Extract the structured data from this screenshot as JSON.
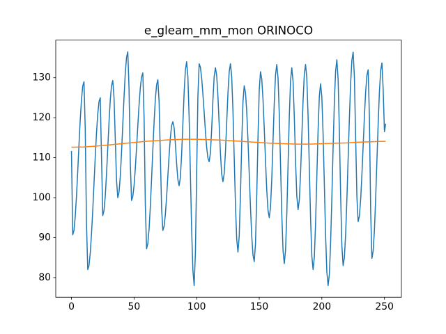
{
  "chart_data": {
    "type": "line",
    "title": "e_gleam_mm_mon ORINOCO",
    "xlim": [
      -12.55,
      263.55
    ],
    "ylim": [
      75.08,
      139.42
    ],
    "xticks": [
      0,
      50,
      100,
      150,
      200,
      250
    ],
    "yticks": [
      80,
      90,
      100,
      110,
      120,
      130
    ],
    "series": [
      {
        "color": "#1f77b4",
        "x": [
          0,
          1,
          2,
          3,
          4,
          5,
          6,
          7,
          8,
          9,
          10,
          11,
          12,
          13,
          14,
          15,
          16,
          17,
          18,
          19,
          20,
          21,
          22,
          23,
          24,
          25,
          26,
          27,
          28,
          29,
          30,
          31,
          32,
          33,
          34,
          35,
          36,
          37,
          38,
          39,
          40,
          41,
          42,
          43,
          44,
          45,
          46,
          47,
          48,
          49,
          50,
          51,
          52,
          53,
          54,
          55,
          56,
          57,
          58,
          59,
          60,
          61,
          62,
          63,
          64,
          65,
          66,
          67,
          68,
          69,
          70,
          71,
          72,
          73,
          74,
          75,
          76,
          77,
          78,
          79,
          80,
          81,
          82,
          83,
          84,
          85,
          86,
          87,
          88,
          89,
          90,
          91,
          92,
          93,
          94,
          95,
          96,
          97,
          98,
          99,
          100,
          101,
          102,
          103,
          104,
          105,
          106,
          107,
          108,
          109,
          110,
          111,
          112,
          113,
          114,
          115,
          116,
          117,
          118,
          119,
          120,
          121,
          122,
          123,
          124,
          125,
          126,
          127,
          128,
          129,
          130,
          131,
          132,
          133,
          134,
          135,
          136,
          137,
          138,
          139,
          140,
          141,
          142,
          143,
          144,
          145,
          146,
          147,
          148,
          149,
          150,
          151,
          152,
          153,
          154,
          155,
          156,
          157,
          158,
          159,
          160,
          161,
          162,
          163,
          164,
          165,
          166,
          167,
          168,
          169,
          170,
          171,
          172,
          173,
          174,
          175,
          176,
          177,
          178,
          179,
          180,
          181,
          182,
          183,
          184,
          185,
          186,
          187,
          188,
          189,
          190,
          191,
          192,
          193,
          194,
          195,
          196,
          197,
          198,
          199,
          200,
          201,
          202,
          203,
          204,
          205,
          206,
          207,
          208,
          209,
          210,
          211,
          212,
          213,
          214,
          215,
          216,
          217,
          218,
          219,
          220,
          221,
          222,
          223,
          224,
          225,
          226,
          227,
          228,
          229,
          230,
          231,
          232,
          233,
          234,
          235,
          236,
          237,
          238,
          239,
          240,
          241,
          242,
          243,
          244,
          245,
          246,
          247,
          248,
          249,
          250,
          251
        ],
        "values": [
          111.7,
          90.7,
          91.8,
          95.2,
          100.3,
          106.5,
          113.2,
          119.4,
          124.5,
          127.9,
          129,
          117.3,
          93.8,
          82,
          83.0,
          86.1,
          90.9,
          96.8,
          103.5,
          110.2,
          116.1,
          120.9,
          124.0,
          125,
          110.3,
          95.5,
          96.8,
          100.4,
          105.9,
          112.4,
          118.9,
          124.4,
          128.0,
          129.3,
          125.0,
          114.7,
          104.3,
          100,
          101.4,
          105.3,
          111.3,
          118.3,
          125.2,
          131.2,
          135.1,
          136.5,
          127.2,
          108.6,
          99.3,
          100.3,
          103.0,
          107.3,
          112.5,
          118.0,
          123.2,
          127.5,
          130.2,
          131.2,
          120.2,
          98.2,
          87.2,
          88.5,
          92.1,
          97.8,
          104.7,
          112.0,
          118.9,
          124.6,
          128.2,
          129.5,
          124.0,
          110.7,
          97.3,
          91.8,
          92.8,
          95.8,
          100.2,
          105.4,
          110.6,
          115.0,
          118.0,
          119,
          117.5,
          113.5,
          108.5,
          104.5,
          103,
          105.1,
          110.8,
          118.5,
          126.3,
          131.9,
          134,
          130.2,
          120,
          106,
          92,
          81.8,
          78,
          86.1,
          105.8,
          125.4,
          133.5,
          132.6,
          129.9,
          125.9,
          121.3,
          116.6,
          112.6,
          109.9,
          109,
          111.2,
          117.1,
          124.4,
          130.3,
          132.5,
          130.6,
          125.4,
          118.3,
          111.1,
          105.9,
          104,
          106.0,
          111.4,
          118.8,
          126.1,
          131.5,
          133.5,
          130.3,
          121.7,
          110.0,
          98.2,
          89.6,
          86.4,
          90.4,
          100.8,
          113.6,
          124.0,
          128,
          126.3,
          121.6,
          114.4,
          106,
          97.6,
          90.4,
          85.7,
          84,
          88.5,
          100.4,
          115.1,
          127.0,
          131.5,
          129.7,
          124.6,
          117.3,
          109.2,
          101.9,
          96.8,
          95,
          97.6,
          104.6,
          114.2,
          123.7,
          130.7,
          133.3,
          130.0,
          120.9,
          108.4,
          95.9,
          86.8,
          83.5,
          86.8,
          95.8,
          108,
          120.3,
          129.2,
          132.5,
          129.1,
          120.3,
          109.2,
          100.4,
          97,
          99.4,
          106.1,
          115.2,
          124.2,
          130.9,
          133.3,
          129.9,
          120.5,
          107.7,
          94.8,
          85.4,
          82,
          85.1,
          93.6,
          105.3,
          116.9,
          125.4,
          128.5,
          125.1,
          115.9,
          103.3,
          90.6,
          81.4,
          78,
          80.8,
          88.6,
          100.0,
          112.5,
          123.9,
          131.7,
          134.5,
          129.6,
          116.7,
          100.8,
          87.9,
          83,
          85.0,
          90.8,
          99.5,
          109.7,
          119.9,
          128.6,
          134.4,
          136.4,
          130.2,
          115.2,
          100.2,
          94,
          95.4,
          99.5,
          105.7,
          113,
          120.3,
          126.5,
          130.6,
          132,
          120.2,
          96.6,
          84.8,
          86.7,
          91.9,
          99.9,
          109.3,
          118.6,
          126.6,
          131.8,
          133.7,
          127,
          116.5,
          118.5
        ]
      },
      {
        "color": "#ff7f0e",
        "x": [
          0,
          10,
          20,
          30,
          40,
          50,
          60,
          70,
          80,
          90,
          100,
          110,
          120,
          130,
          140,
          150,
          160,
          170,
          180,
          190,
          200,
          210,
          220,
          230,
          240,
          251
        ],
        "values": [
          112.6,
          112.7,
          112.9,
          113.2,
          113.5,
          113.8,
          114.1,
          114.3,
          114.5,
          114.6,
          114.6,
          114.5,
          114.4,
          114.2,
          114.0,
          113.8,
          113.6,
          113.5,
          113.4,
          113.4,
          113.5,
          113.6,
          113.7,
          113.9,
          114.0,
          114.1
        ]
      }
    ]
  }
}
